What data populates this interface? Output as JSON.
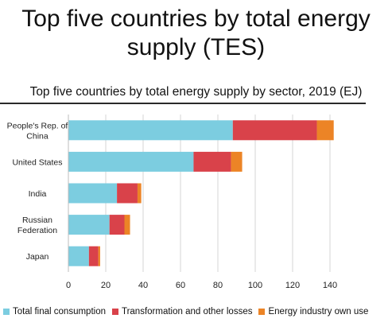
{
  "slide": {
    "title_line1": "Top five countries by total energy",
    "title_line2": "supply (TES)"
  },
  "chart_data": {
    "type": "bar",
    "orientation": "horizontal",
    "stacked": true,
    "title": "Top five countries by total energy supply by sector, 2019 (EJ)",
    "categories": [
      "People's Rep. of China",
      "United States",
      "India",
      "Russian Federation",
      "Japan"
    ],
    "category_lines": [
      [
        "People's Rep. of",
        "China"
      ],
      [
        "United States"
      ],
      [
        "India"
      ],
      [
        "Russian",
        "Federation"
      ],
      [
        "Japan"
      ]
    ],
    "series": [
      {
        "name": "Total final consumption",
        "color": "#7ccde0",
        "values": [
          88,
          67,
          26,
          22,
          11
        ]
      },
      {
        "name": "Transformation and other losses",
        "color": "#d9424a",
        "values": [
          45,
          20,
          11,
          8,
          5
        ]
      },
      {
        "name": "Energy industry own use",
        "color": "#ec8426",
        "values": [
          9,
          6,
          2,
          3,
          1
        ]
      }
    ],
    "xlim": [
      0,
      140
    ],
    "xticks": [
      "0",
      "20",
      "40",
      "60",
      "80",
      "100",
      "120",
      "140"
    ],
    "grid": true,
    "legend_position": "bottom"
  }
}
